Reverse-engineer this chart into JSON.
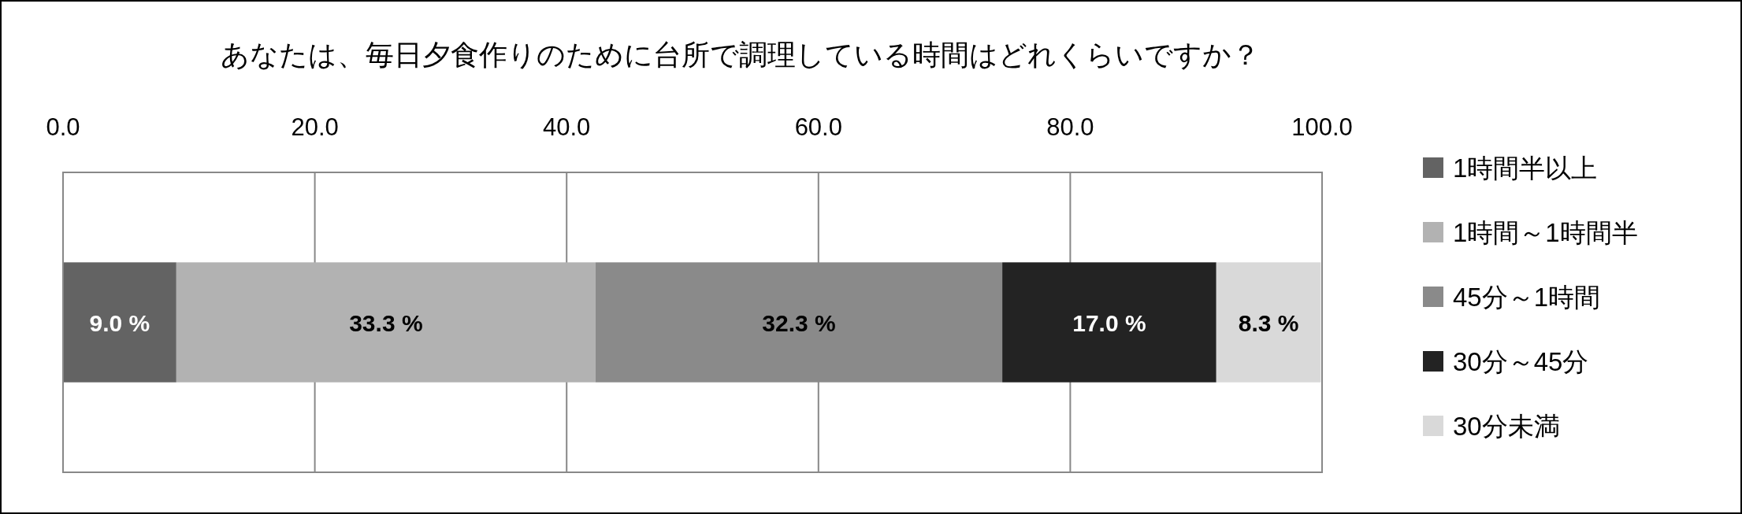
{
  "chart_data": {
    "type": "bar",
    "title": "あなたは、毎日夕食作りのために台所で調理している時間はどれくらいですか？",
    "orientation": "horizontal",
    "stacked": true,
    "categories": [
      null
    ],
    "series": [
      {
        "name": "1時間半以上",
        "color": "#636363",
        "values": [
          9.0
        ],
        "value_labels": [
          "9.0 %"
        ]
      },
      {
        "name": "1時間～1時間半",
        "color": "#b2b2b2",
        "values": [
          33.3
        ],
        "value_labels": [
          "33.3 %"
        ]
      },
      {
        "name": "45分～1時間",
        "color": "#8a8a8a",
        "values": [
          32.3
        ],
        "value_labels": [
          "32.3 %"
        ]
      },
      {
        "name": "30分～45分",
        "color": "#232323",
        "values": [
          17.0
        ],
        "value_labels": [
          "17.0 %"
        ]
      },
      {
        "name": "30分未満",
        "color": "#d9d9d9",
        "values": [
          8.3
        ],
        "value_labels": [
          "8.3 %"
        ]
      }
    ],
    "xlim": [
      0,
      100
    ],
    "xticks": [
      {
        "value": 0,
        "label": "0.0"
      },
      {
        "value": 20,
        "label": "20.0"
      },
      {
        "value": 40,
        "label": "40.0"
      },
      {
        "value": 60,
        "label": "60.0"
      },
      {
        "value": 80,
        "label": "80.0"
      },
      {
        "value": 100,
        "label": "100.0"
      }
    ],
    "grid": "x",
    "legend": "right"
  }
}
